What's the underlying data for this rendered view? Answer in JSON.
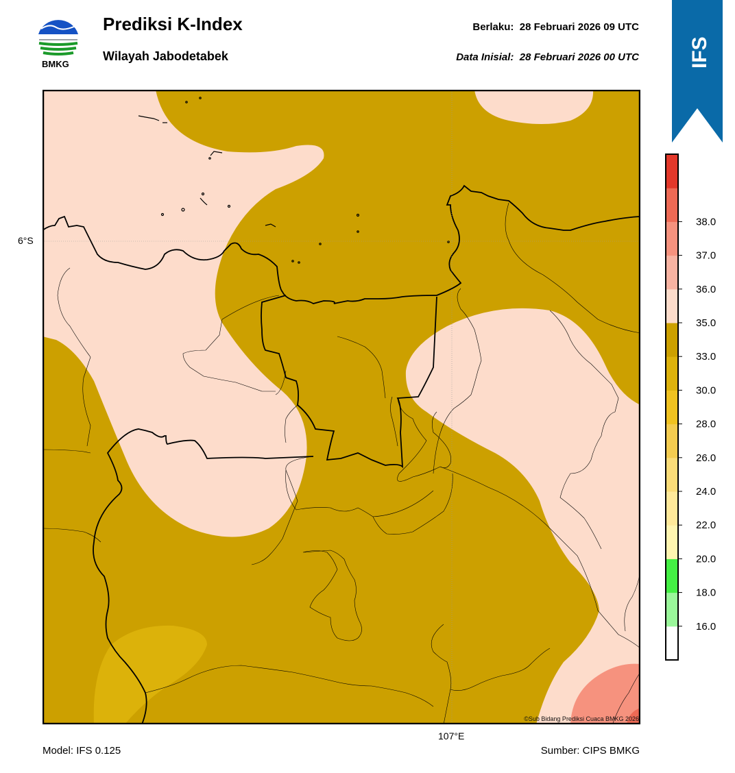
{
  "header": {
    "logo_text": "BMKG",
    "title": "Prediksi K-Index",
    "subtitle": "Wilayah Jabodetabek",
    "valid_label": "Berlaku:",
    "valid_value": "28 Februari 2026 09 UTC",
    "init_label": "Data Inisial:",
    "init_value": "28 Februari 2026 00 UTC"
  },
  "ribbon": {
    "label": "IFS",
    "color": "#0a6aa8"
  },
  "map": {
    "lat_label": "6°S",
    "lon_label": "107°E",
    "credit": "©Sub Bidang Prediksi Cuaca BMKG 2026",
    "field_colors": {
      "k_33_35": "#cca000",
      "k_30_33": "#dcb20a",
      "k_35_36": "#fddccb",
      "k_37_38": "#f6927e",
      "k_38_39": "#ee6a55"
    }
  },
  "colorbar": {
    "levels": [
      {
        "color": "#ffffff"
      },
      {
        "color": "#9af79a",
        "label": "16.0"
      },
      {
        "color": "#44ef44",
        "label": "18.0"
      },
      {
        "color": "#fff5b0",
        "label": "20.0"
      },
      {
        "color": "#ffe99a",
        "label": "22.0"
      },
      {
        "color": "#fbdc78",
        "label": "24.0"
      },
      {
        "color": "#f4cc50",
        "label": "26.0"
      },
      {
        "color": "#f0c220",
        "label": "28.0"
      },
      {
        "color": "#ddb20c",
        "label": "30.0"
      },
      {
        "color": "#cca000",
        "label": "33.0"
      },
      {
        "color": "#fddccb",
        "label": "35.0"
      },
      {
        "color": "#f8b3a2",
        "label": "36.0"
      },
      {
        "color": "#f6927e",
        "label": "37.0"
      },
      {
        "color": "#ee6a55",
        "label": "38.0"
      },
      {
        "color": "#e3382a"
      }
    ]
  },
  "footer": {
    "model": "Model: IFS 0.125",
    "source": "Sumber: CIPS BMKG"
  }
}
